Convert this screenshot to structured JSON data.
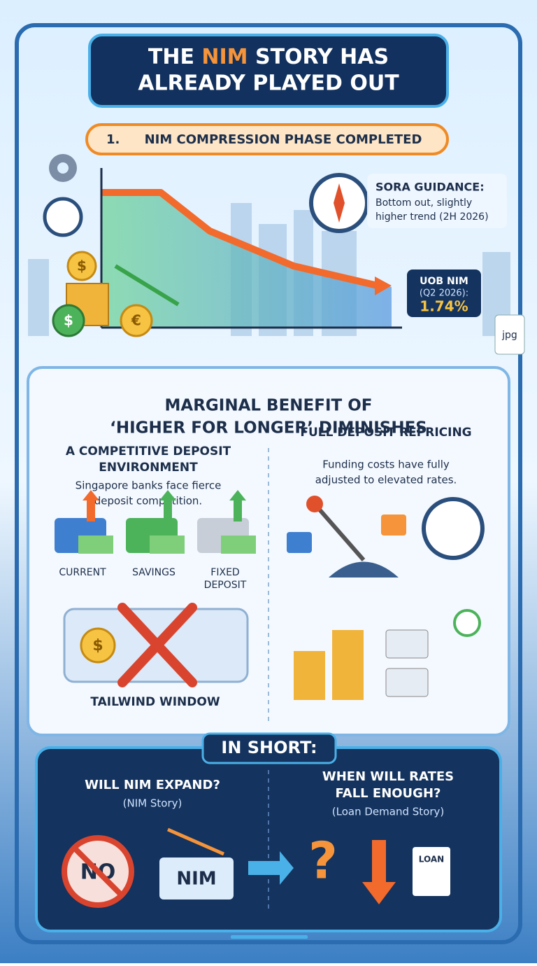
{
  "header": {
    "title_line1": [
      "THE",
      "NIM",
      "STORY HAS"
    ],
    "title_line2": "ALREADY PLAYED OUT"
  },
  "phase": {
    "number": "1.",
    "label": "NIM COMPRESSION PHASE COMPLETED"
  },
  "sora": {
    "title": "SORA GUIDANCE:",
    "lines": [
      "Bottom out, slightly",
      "higher trend (2H 2026)"
    ]
  },
  "uob": {
    "label": "UOB NIM",
    "period": "(Q2 2026):",
    "value": "1.74%"
  },
  "badge": "jpg",
  "coins": [
    "$",
    "$",
    "€"
  ],
  "section2": {
    "heading": [
      "MARGINAL BENEFIT OF",
      "‘HIGHER FOR LONGER’ DIMINISHES"
    ],
    "left": {
      "title": [
        "A COMPETITIVE DEPOSIT",
        "ENVIRONMENT"
      ],
      "text": [
        "Singapore banks face fierce",
        "deposit competition."
      ],
      "items": [
        "CURRENT",
        "SAVINGS",
        "FIXED",
        "DEPOSIT"
      ],
      "coin": "$",
      "caption": "TAILWIND WINDOW"
    },
    "right": {
      "title": "FULL DEPOSIT REPRICING",
      "text": [
        "Funding costs have fully",
        "adjusted to elevated rates."
      ]
    }
  },
  "summary": {
    "title": "IN SHORT:",
    "left": {
      "question": "WILL NIM EXPAND?",
      "sub": "(NIM Story)",
      "no": "NO",
      "nim": "NIM"
    },
    "right": {
      "question": [
        "WHEN WILL RATES",
        "FALL ENOUGH?"
      ],
      "sub": "(Loan Demand Story)",
      "mark": "?",
      "loan": "LOAN"
    }
  }
}
